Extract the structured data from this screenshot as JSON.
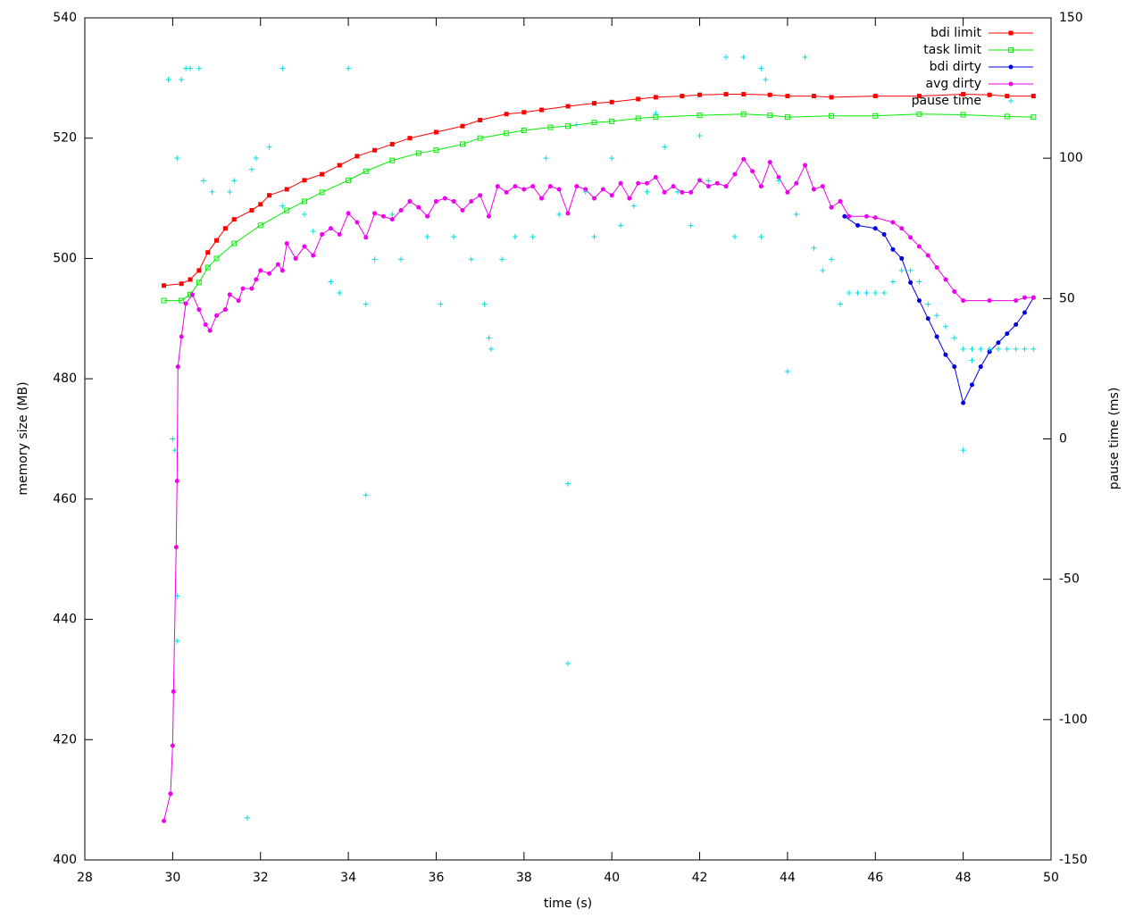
{
  "chart_data": {
    "type": "line",
    "xlabel": "time (s)",
    "ylabel": "memory size (MB)",
    "y2label": "pause time (ms)",
    "xlim": [
      28,
      50
    ],
    "xticks": [
      28,
      30,
      32,
      34,
      36,
      38,
      40,
      42,
      44,
      46,
      48,
      50
    ],
    "ylim": [
      400,
      540
    ],
    "yticks": [
      400,
      420,
      440,
      460,
      480,
      500,
      520,
      540
    ],
    "y2lim": [
      -150,
      150
    ],
    "y2ticks": [
      -150,
      -100,
      -50,
      0,
      50,
      100,
      150
    ],
    "legend": "top-right",
    "series": [
      {
        "name": "bdi limit",
        "color": "#ff0000",
        "marker": "square",
        "x": [
          29.8,
          30.2,
          30.4,
          30.6,
          30.8,
          31,
          31.2,
          31.4,
          31.8,
          32,
          32.2,
          32.6,
          33,
          33.4,
          33.8,
          34.2,
          34.6,
          35,
          35.4,
          36,
          36.6,
          37,
          37.6,
          38,
          38.4,
          39,
          39.6,
          40,
          40.6,
          41,
          41.6,
          42,
          42.6,
          43,
          43.6,
          44,
          44.6,
          45,
          46,
          47,
          48,
          48.6,
          49,
          49.6
        ],
        "values": [
          495.5,
          495.8,
          496.5,
          498,
          501,
          503,
          505,
          506.5,
          508,
          509,
          510.5,
          511.5,
          513,
          514,
          515.5,
          517,
          518,
          519,
          520,
          521,
          522,
          523,
          524,
          524.3,
          524.7,
          525.3,
          525.8,
          526,
          526.5,
          526.8,
          527,
          527.2,
          527.3,
          527.3,
          527.2,
          527,
          527,
          526.8,
          527,
          527,
          527.3,
          527.2,
          527,
          527
        ]
      },
      {
        "name": "task limit",
        "color": "#00ee00",
        "marker": "open-square",
        "x": [
          29.8,
          30.2,
          30.4,
          30.6,
          30.8,
          31,
          31.4,
          32,
          32.6,
          33,
          33.4,
          34,
          34.4,
          35,
          35.6,
          36,
          36.6,
          37,
          37.6,
          38,
          38.6,
          39,
          39.6,
          40,
          40.6,
          41,
          42,
          43,
          43.6,
          44,
          45,
          46,
          47,
          48,
          49,
          49.6
        ],
        "values": [
          493,
          493,
          494,
          496,
          498.5,
          500,
          502.5,
          505.5,
          508,
          509.5,
          511,
          513,
          514.5,
          516.3,
          517.5,
          518,
          519,
          520,
          520.8,
          521.3,
          521.8,
          522,
          522.6,
          522.8,
          523.3,
          523.5,
          523.8,
          524,
          523.8,
          523.5,
          523.7,
          523.7,
          524,
          523.9,
          523.6,
          523.5
        ]
      },
      {
        "name": "bdi dirty",
        "color": "#0000dd",
        "marker": "circle",
        "x": [
          45.3,
          45.6,
          46,
          46.2,
          46.4,
          46.6,
          46.8,
          47,
          47.2,
          47.4,
          47.6,
          47.8,
          48,
          48.2,
          48.4,
          48.6,
          48.8,
          49,
          49.2,
          49.4,
          49.6
        ],
        "values": [
          507,
          505.5,
          505,
          504,
          501.5,
          500,
          496,
          493,
          490,
          487,
          484,
          482,
          476,
          479,
          482,
          484.5,
          486,
          487.5,
          489,
          491,
          493.5
        ]
      },
      {
        "name": "avg dirty",
        "color": "#ee00ee",
        "marker": "circle",
        "x": [
          29.8,
          29.95,
          30,
          30.02,
          30.08,
          30.1,
          30.12,
          30.2,
          30.3,
          30.45,
          30.6,
          30.75,
          30.85,
          31,
          31.2,
          31.3,
          31.5,
          31.6,
          31.8,
          31.9,
          32,
          32.2,
          32.4,
          32.5,
          32.6,
          32.8,
          33,
          33.2,
          33.4,
          33.6,
          33.8,
          34,
          34.2,
          34.4,
          34.6,
          34.8,
          35,
          35.2,
          35.4,
          35.6,
          35.8,
          36,
          36.2,
          36.4,
          36.6,
          36.8,
          37,
          37.2,
          37.4,
          37.6,
          37.8,
          38,
          38.2,
          38.4,
          38.6,
          38.8,
          39,
          39.2,
          39.4,
          39.6,
          39.8,
          40,
          40.2,
          40.4,
          40.6,
          40.8,
          41,
          41.2,
          41.4,
          41.6,
          41.8,
          42,
          42.2,
          42.4,
          42.6,
          42.8,
          43,
          43.2,
          43.4,
          43.6,
          43.8,
          44,
          44.2,
          44.4,
          44.6,
          44.8,
          45,
          45.2,
          45.4,
          45.8,
          46,
          46.4,
          46.6,
          46.8,
          47,
          47.2,
          47.4,
          47.6,
          47.8,
          48,
          48.6,
          49.2,
          49.4,
          49.6
        ],
        "values": [
          406.5,
          411,
          419,
          428,
          452,
          463,
          482,
          487,
          492.5,
          494,
          491.5,
          489,
          488,
          490.5,
          491.5,
          494,
          493,
          495,
          495,
          496.5,
          498,
          497.5,
          499,
          498,
          502.5,
          500,
          502,
          500.5,
          504,
          505,
          504,
          507.5,
          506,
          503.5,
          507.5,
          507,
          506.5,
          508,
          509.5,
          508.5,
          507,
          509.5,
          510,
          509.5,
          508,
          509.5,
          510.5,
          507,
          512,
          511,
          512,
          511.5,
          512,
          510,
          512,
          511.5,
          507.5,
          512,
          511.5,
          510,
          511.5,
          510.5,
          512.5,
          510,
          512.5,
          512.5,
          513.5,
          511,
          512,
          511,
          511,
          513,
          512,
          512.5,
          512,
          514,
          516.5,
          514.5,
          512,
          516,
          513.5,
          511,
          512.5,
          515.5,
          511.5,
          512,
          508.5,
          509.5,
          507,
          507,
          506.8,
          506,
          505,
          503.5,
          502,
          500.5,
          498.5,
          496.5,
          494.5,
          493,
          493,
          493,
          493.5,
          493.5
        ]
      },
      {
        "name": "pause time",
        "color": "#00dddd",
        "marker": "plus",
        "axis": "y2",
        "x": [
          29.9,
          30,
          30.05,
          30.1,
          30.1,
          30.2,
          30.3,
          30.4,
          30.6,
          30.1,
          30.7,
          30.9,
          31.3,
          31.4,
          31.8,
          31.9,
          32.5,
          31.7,
          32.2,
          32.5,
          33,
          33.2,
          33.6,
          33.8,
          34,
          34.4,
          34.4,
          34.6,
          35,
          35.2,
          35.8,
          36.1,
          36.4,
          36.8,
          37.1,
          37.2,
          37.25,
          37.5,
          37.8,
          38.2,
          38.5,
          38.8,
          39,
          39,
          39.2,
          39.4,
          39.6,
          40,
          40.2,
          40.5,
          40.8,
          41,
          41.2,
          41.5,
          41.8,
          42,
          42.2,
          42.6,
          42.8,
          43,
          43.4,
          43.5,
          43.4,
          43.8,
          44,
          44.2,
          44.4,
          44.6,
          44.8,
          45,
          45.2,
          45.4,
          45.6,
          45.8,
          46,
          46.2,
          46.4,
          46.6,
          46.8,
          47,
          47.2,
          47.4,
          47.6,
          47.8,
          48,
          48.2,
          48.4,
          48.6,
          48.8,
          49,
          49.2,
          49.4,
          49.6,
          48,
          48.2
        ],
        "values": [
          128,
          0,
          -4,
          -56,
          -72,
          128,
          132,
          132,
          132,
          100,
          92,
          88,
          88,
          92,
          96,
          100,
          132,
          -135,
          104,
          83,
          80,
          74,
          56,
          52,
          132,
          48,
          -20,
          64,
          80,
          64,
          72,
          48,
          72,
          64,
          48,
          36,
          32,
          64,
          72,
          72,
          100,
          80,
          -16,
          -80,
          112,
          88,
          72,
          100,
          76,
          83,
          88,
          116,
          104,
          88,
          76,
          108,
          92,
          136,
          72,
          136,
          132,
          128,
          72,
          92,
          24,
          80,
          136,
          68,
          60,
          64,
          48,
          52,
          52,
          52,
          52,
          52,
          56,
          60,
          60,
          56,
          48,
          44,
          40,
          36,
          32,
          32,
          32,
          32,
          32,
          32,
          32,
          32,
          32,
          -4,
          28
        ]
      }
    ]
  }
}
